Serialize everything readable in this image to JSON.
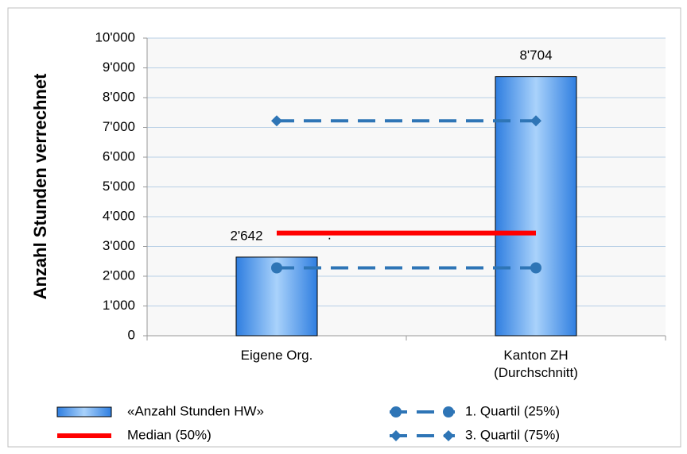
{
  "chart_data": {
    "type": "bar",
    "y_label": "Anzahl Stunden verrechnet",
    "categories": [
      "Eigene Org.",
      "Kanton ZH (Durchschnitt)"
    ],
    "series": [
      {
        "name": "«Anzahl Stunden HW»",
        "type": "bar",
        "color": "#4f9ef0",
        "values": [
          2642,
          8704
        ],
        "value_labels": [
          "2'642",
          "8'704"
        ]
      },
      {
        "name": "1. Quartil (25%)",
        "type": "line",
        "color": "#2e75b6",
        "dashed": true,
        "marker": "circle",
        "values": [
          2280,
          2280
        ]
      },
      {
        "name": "Median (50%)",
        "type": "line",
        "color": "#ff0000",
        "dashed": false,
        "marker": "none",
        "values": [
          3450,
          3450
        ]
      },
      {
        "name": "3. Quartil (75%)",
        "type": "line",
        "color": "#2e75b6",
        "dashed": true,
        "marker": "diamond",
        "values": [
          7220,
          7220
        ]
      }
    ],
    "annotation": ".",
    "ylim": [
      0,
      10000
    ],
    "yticks": [
      0,
      {
        "value": 1000,
        "label": "1'000"
      },
      {
        "value": 2000,
        "label": "2'000"
      },
      {
        "value": 3000,
        "label": "3'000"
      },
      {
        "value": 4000,
        "label": "4'000"
      },
      {
        "value": 5000,
        "label": "5'000"
      },
      {
        "value": 6000,
        "label": "6'000"
      },
      {
        "value": 7000,
        "label": "7'000"
      },
      {
        "value": 8000,
        "label": "8'000"
      },
      {
        "value": 9000,
        "label": "9'000"
      },
      {
        "value": 10000,
        "label": "10'000"
      }
    ],
    "grid": true
  }
}
